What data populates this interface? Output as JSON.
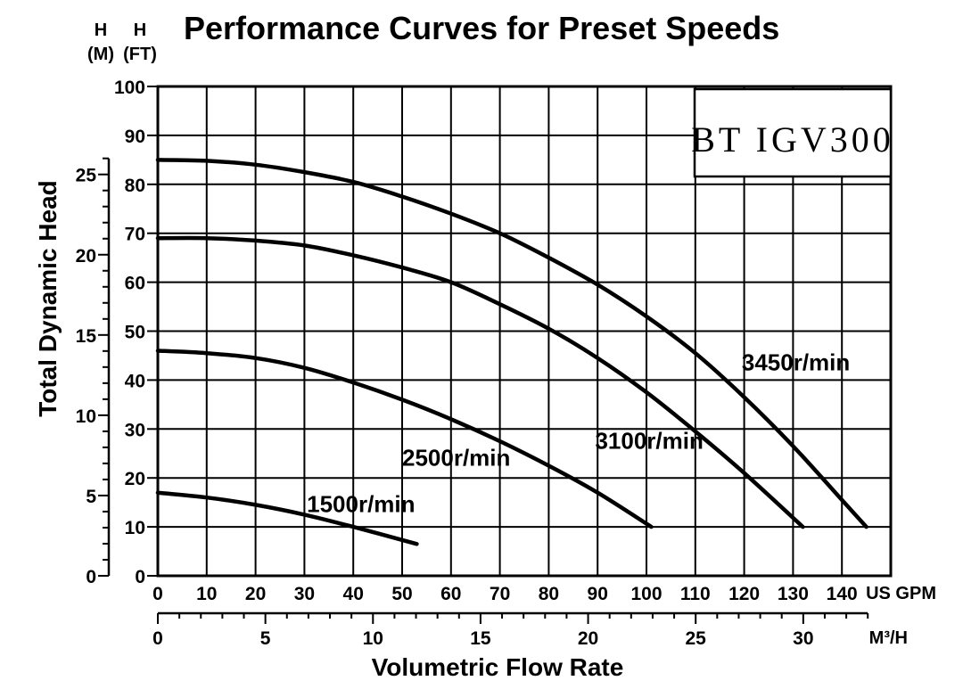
{
  "chart_data": {
    "type": "line",
    "title": "Performance Curves for Preset Speeds",
    "model": "BT IGV300",
    "ylabel": "Total Dynamic Head",
    "xlabel": "Volumetric Flow Rate",
    "units": {
      "ft_top": "H",
      "ft_bottom": "(FT)",
      "m_top": "H",
      "m_bottom": "(M)",
      "gpm": "US GPM",
      "m3h": "M³/H"
    },
    "x_gpm_range": [
      0,
      150
    ],
    "y_ft_range": [
      0,
      100
    ],
    "x_gpm_ticks": [
      "0",
      "10",
      "20",
      "30",
      "40",
      "50",
      "60",
      "70",
      "80",
      "90",
      "100",
      "110",
      "120",
      "130",
      "140"
    ],
    "y_ft_ticks": [
      "0",
      "10",
      "20",
      "30",
      "40",
      "50",
      "60",
      "70",
      "80",
      "90",
      "100"
    ],
    "y_m_ticks": [
      "0",
      "5",
      "10",
      "15",
      "20",
      "25"
    ],
    "x_m3h_ticks": [
      "0",
      "5",
      "10",
      "15",
      "20",
      "25",
      "30"
    ],
    "series": [
      {
        "name": "3450r/min",
        "x": [
          0,
          10,
          20,
          30,
          40,
          50,
          60,
          70,
          80,
          90,
          100,
          110,
          120,
          130,
          140,
          145
        ],
        "y": [
          85,
          84.8,
          84,
          82.5,
          80.5,
          77.5,
          74,
          70,
          65,
          59.5,
          53,
          45.5,
          36.5,
          26.5,
          15.5,
          10
        ]
      },
      {
        "name": "3100r/min",
        "x": [
          0,
          10,
          20,
          30,
          40,
          50,
          60,
          70,
          80,
          90,
          100,
          110,
          120,
          132
        ],
        "y": [
          69,
          69,
          68.5,
          67.5,
          65.5,
          63,
          60,
          55.5,
          50.5,
          44.5,
          37.5,
          29.5,
          21,
          10
        ]
      },
      {
        "name": "2500r/min",
        "x": [
          0,
          10,
          20,
          30,
          40,
          50,
          60,
          70,
          80,
          90,
          101
        ],
        "y": [
          46,
          45.5,
          44.5,
          42.5,
          39.5,
          36,
          32,
          27.5,
          22.5,
          17,
          10
        ]
      },
      {
        "name": "1500r/min",
        "x": [
          0,
          10,
          20,
          30,
          40,
          53
        ],
        "y": [
          17,
          16,
          14.5,
          12.5,
          10,
          6.5
        ]
      }
    ]
  }
}
